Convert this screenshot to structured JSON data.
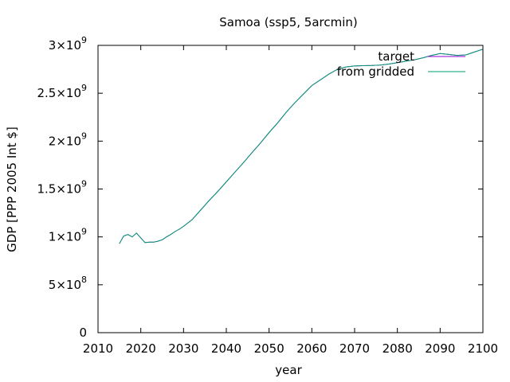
{
  "chart_data": {
    "type": "line",
    "title": "Samoa (ssp5, 5arcmin)",
    "xlabel": "year",
    "ylabel": "GDP [PPP 2005 Int $]",
    "xlim": [
      2010,
      2100
    ],
    "ylim": [
      0,
      3000000000
    ],
    "grid": false,
    "legend_position": "top-right",
    "x_ticks": [
      2010,
      2020,
      2030,
      2040,
      2050,
      2060,
      2070,
      2080,
      2090,
      2100
    ],
    "y_ticks": [
      {
        "value": 0,
        "label_mantissa": "0",
        "label_exponent": ""
      },
      {
        "value": 500000000,
        "label_mantissa": "5×10",
        "label_exponent": "8"
      },
      {
        "value": 1000000000,
        "label_mantissa": "1×10",
        "label_exponent": "9"
      },
      {
        "value": 1500000000,
        "label_mantissa": "1.5×10",
        "label_exponent": "9"
      },
      {
        "value": 2000000000,
        "label_mantissa": "2×10",
        "label_exponent": "9"
      },
      {
        "value": 2500000000,
        "label_mantissa": "2.5×10",
        "label_exponent": "9"
      },
      {
        "value": 3000000000,
        "label_mantissa": "3×10",
        "label_exponent": "9"
      }
    ],
    "series": [
      {
        "name": "target",
        "color": "#9400d3",
        "x": [
          2015,
          2016,
          2017,
          2018,
          2019,
          2020,
          2021,
          2022,
          2023,
          2024,
          2025,
          2026,
          2027,
          2028,
          2029,
          2030,
          2032,
          2034,
          2036,
          2038,
          2040,
          2042,
          2044,
          2046,
          2048,
          2050,
          2052,
          2054,
          2056,
          2058,
          2060,
          2062,
          2064,
          2066,
          2068,
          2070,
          2072,
          2074,
          2076,
          2078,
          2080,
          2082,
          2084,
          2086,
          2088,
          2090,
          2092,
          2094,
          2096,
          2098,
          2100
        ],
        "values": [
          930000000,
          1010000000,
          1025000000,
          1000000000,
          1040000000,
          990000000,
          940000000,
          945000000,
          945000000,
          955000000,
          970000000,
          1000000000,
          1025000000,
          1055000000,
          1080000000,
          1110000000,
          1180000000,
          1280000000,
          1380000000,
          1475000000,
          1575000000,
          1675000000,
          1775000000,
          1880000000,
          1980000000,
          2090000000,
          2190000000,
          2300000000,
          2400000000,
          2490000000,
          2580000000,
          2640000000,
          2700000000,
          2750000000,
          2775000000,
          2785000000,
          2788000000,
          2790000000,
          2795000000,
          2805000000,
          2820000000,
          2835000000,
          2850000000,
          2870000000,
          2895000000,
          2915000000,
          2905000000,
          2895000000,
          2900000000,
          2930000000,
          2960000000
        ]
      },
      {
        "name": "from gridded",
        "color": "#009e73",
        "x": [
          2015,
          2016,
          2017,
          2018,
          2019,
          2020,
          2021,
          2022,
          2023,
          2024,
          2025,
          2026,
          2027,
          2028,
          2029,
          2030,
          2032,
          2034,
          2036,
          2038,
          2040,
          2042,
          2044,
          2046,
          2048,
          2050,
          2052,
          2054,
          2056,
          2058,
          2060,
          2062,
          2064,
          2066,
          2068,
          2070,
          2072,
          2074,
          2076,
          2078,
          2080,
          2082,
          2084,
          2086,
          2088,
          2090,
          2092,
          2094,
          2096,
          2098,
          2100
        ],
        "values": [
          930000000,
          1010000000,
          1025000000,
          1000000000,
          1040000000,
          990000000,
          940000000,
          945000000,
          945000000,
          955000000,
          970000000,
          1000000000,
          1025000000,
          1055000000,
          1080000000,
          1110000000,
          1180000000,
          1280000000,
          1380000000,
          1475000000,
          1575000000,
          1675000000,
          1775000000,
          1880000000,
          1980000000,
          2090000000,
          2190000000,
          2300000000,
          2400000000,
          2490000000,
          2580000000,
          2640000000,
          2700000000,
          2750000000,
          2775000000,
          2785000000,
          2788000000,
          2790000000,
          2795000000,
          2805000000,
          2820000000,
          2835000000,
          2850000000,
          2870000000,
          2895000000,
          2915000000,
          2905000000,
          2895000000,
          2900000000,
          2930000000,
          2960000000
        ]
      }
    ]
  }
}
